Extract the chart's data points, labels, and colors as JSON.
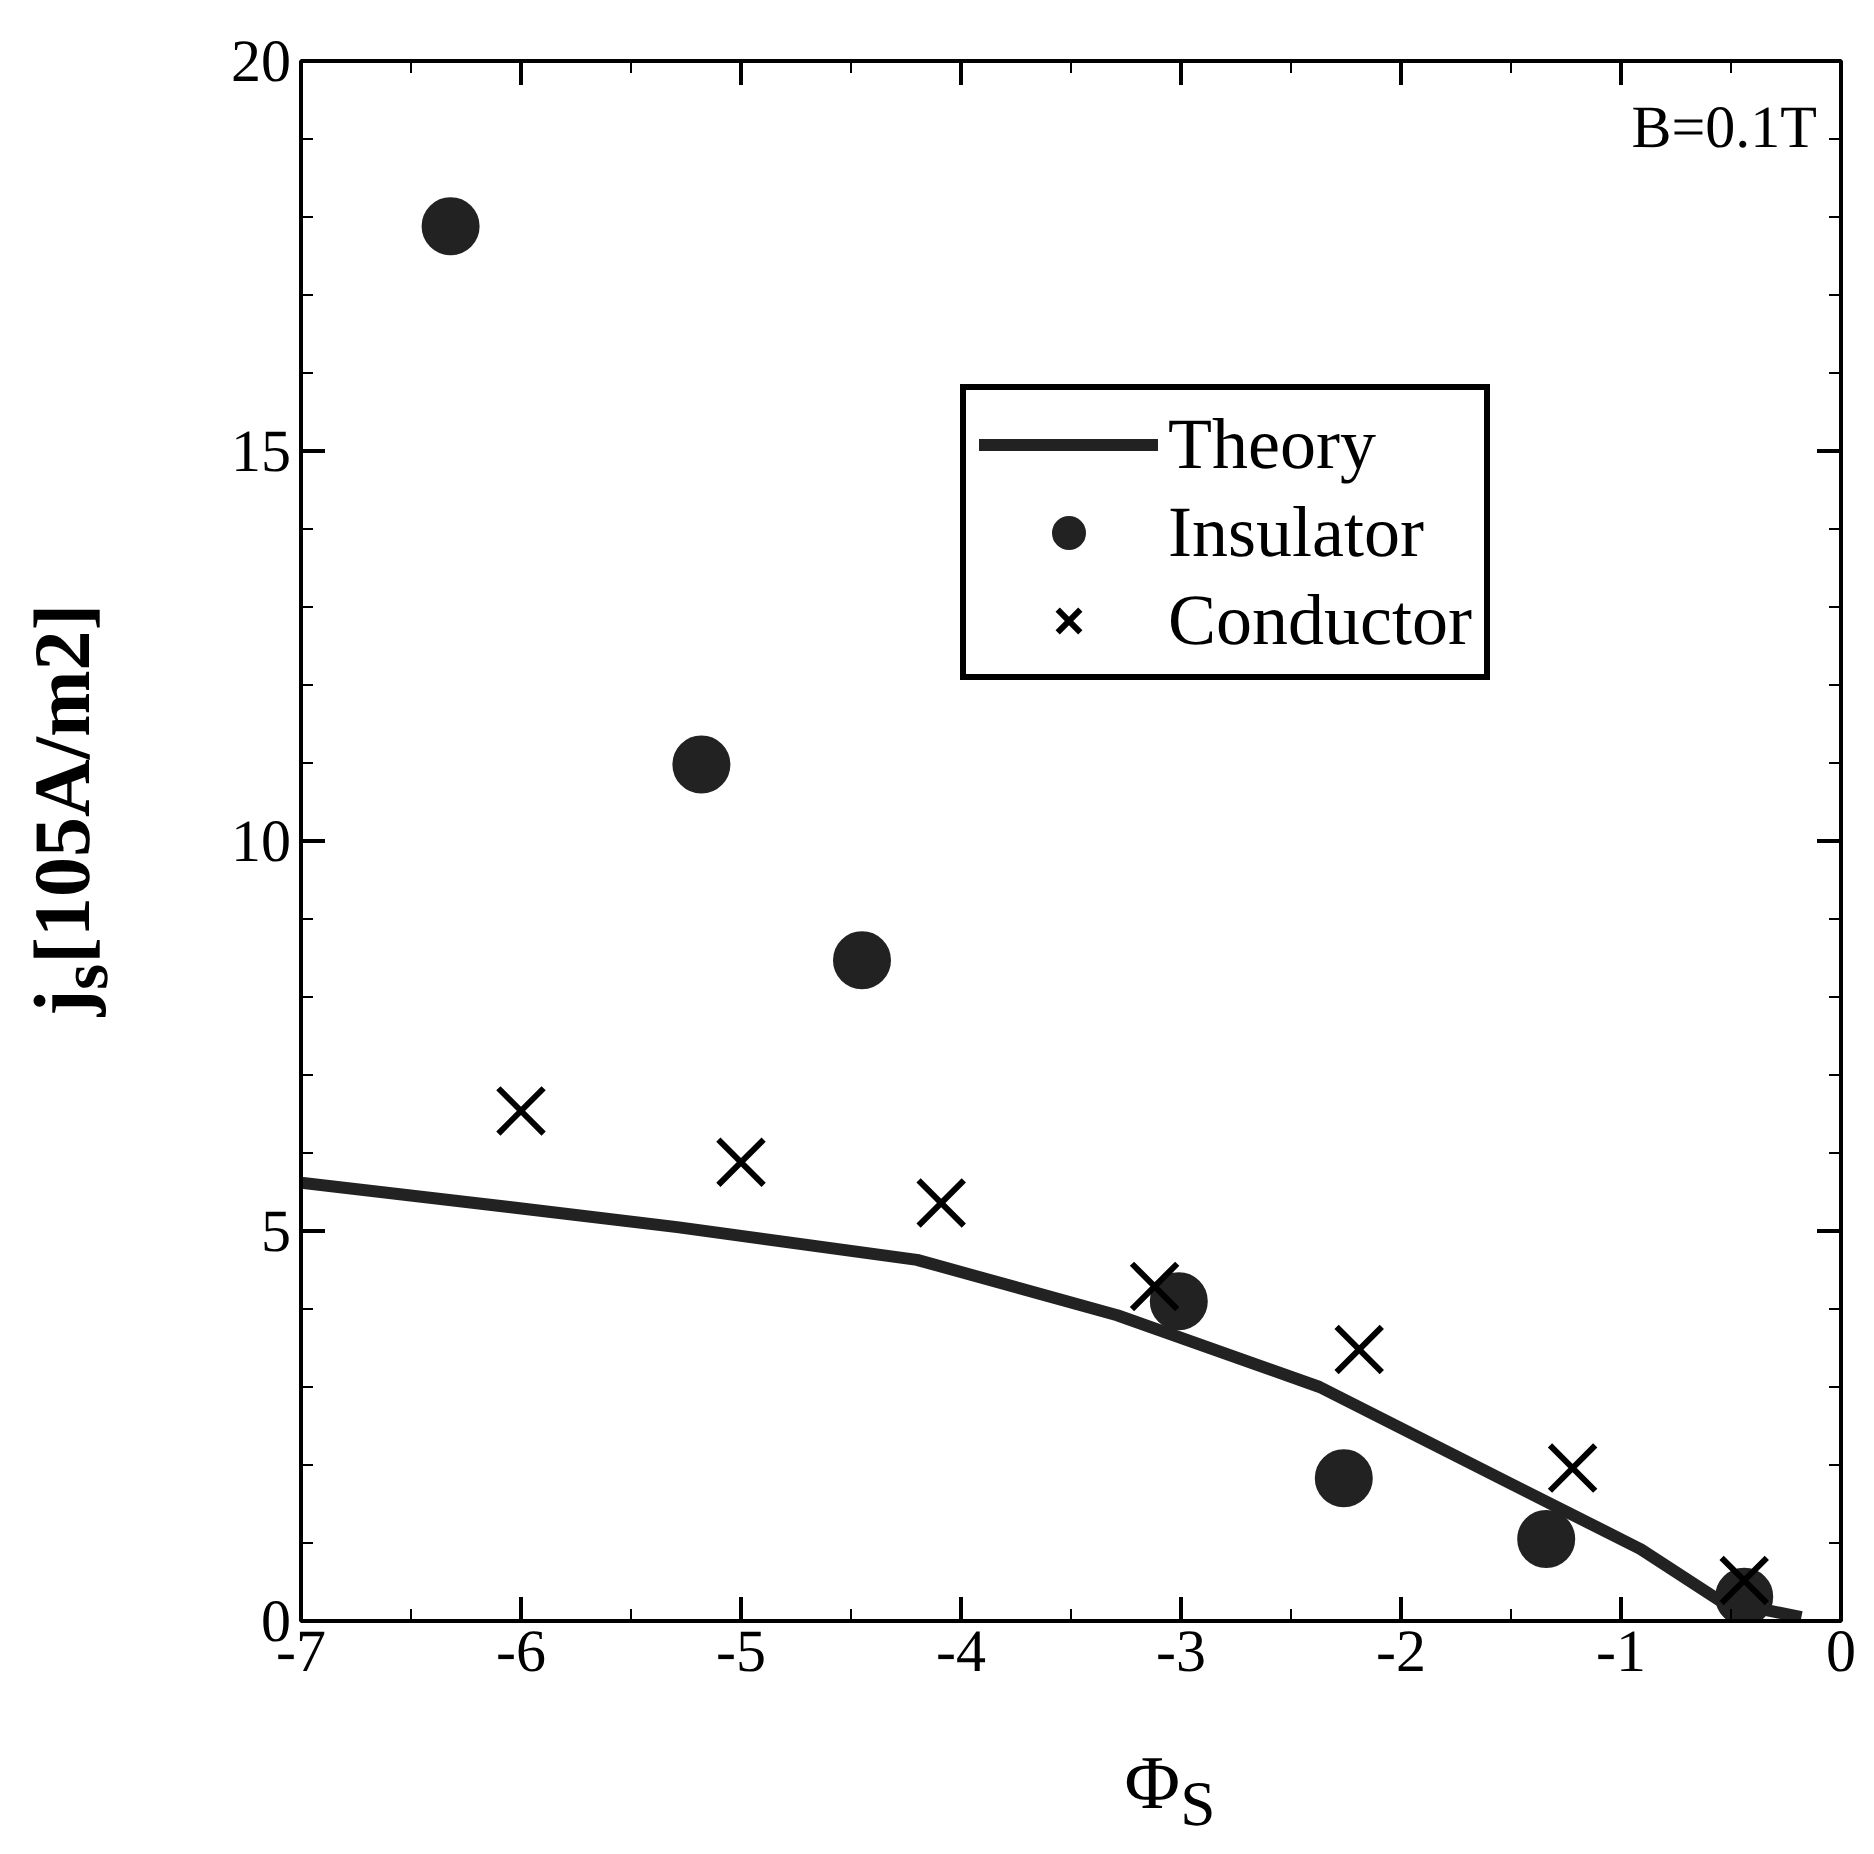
{
  "chart_data": {
    "type": "scatter",
    "xlabel": "Φ$_{S}$",
    "ylabel": "j$_{s}$[105A/m2]",
    "xlim": [
      -7,
      0
    ],
    "ylim": [
      0,
      20
    ],
    "xticks": [
      -7,
      -6,
      -5,
      -4,
      -3,
      -2,
      -1,
      0
    ],
    "yticks": [
      0,
      5,
      10,
      15,
      20
    ],
    "grid": false,
    "legend": "top right",
    "annotations": [
      "B=0.1T"
    ],
    "series": [
      {
        "name": "Theory",
        "type": "line",
        "color": "#222222",
        "line_style": "solid",
        "marker": "none",
        "x": [
          -7,
          -6.21,
          -5.29,
          -4.2,
          -3.29,
          -2.37,
          -1.55,
          -0.91,
          -0.55,
          -0.18
        ],
        "values": [
          5.62,
          5.36,
          5.05,
          4.63,
          3.92,
          3.0,
          1.83,
          0.92,
          0.26,
          0.05
        ]
      },
      {
        "name": "Insulator",
        "color": "#222222",
        "marker": "circle",
        "x": [
          -6.32,
          -5.18,
          -4.45,
          -3.01,
          -2.26,
          -1.34,
          -0.44
        ],
        "values": [
          17.88,
          10.98,
          8.47,
          4.1,
          1.83,
          1.05,
          0.31
        ]
      },
      {
        "name": "Conductor",
        "color": "#000000",
        "marker": "cross",
        "x": [
          -6.0,
          -5.0,
          -4.09,
          -3.12,
          -2.19,
          -1.22,
          -0.44
        ],
        "values": [
          6.54,
          5.88,
          5.36,
          4.29,
          3.48,
          1.96,
          0.52
        ]
      }
    ]
  }
}
